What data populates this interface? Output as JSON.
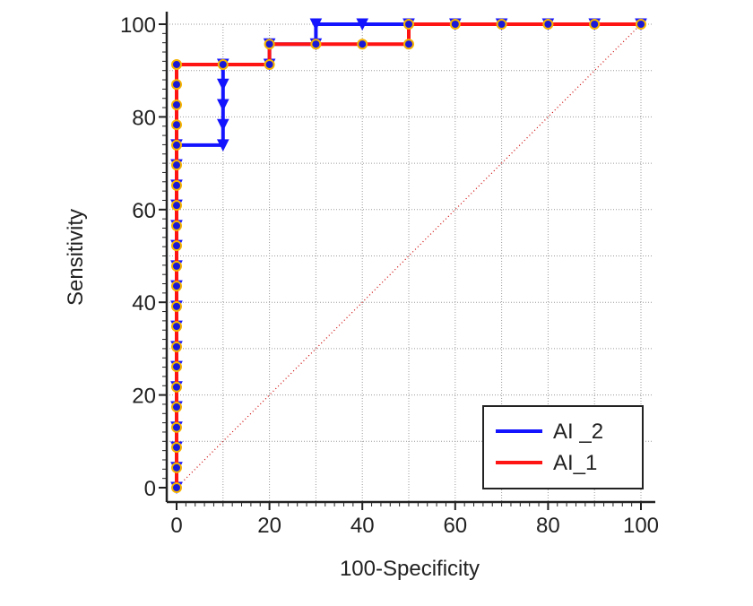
{
  "chart_data": {
    "type": "line",
    "title": "",
    "xlabel": "100-Specificity",
    "ylabel": "Sensitivity",
    "xlim": [
      0,
      100
    ],
    "ylim": [
      0,
      100
    ],
    "xticks": [
      0,
      20,
      40,
      60,
      80,
      100
    ],
    "yticks": [
      0,
      20,
      40,
      60,
      80,
      100
    ],
    "x_tick_labels": [
      "0",
      "20",
      "40",
      "60",
      "80",
      "100"
    ],
    "y_tick_labels": [
      "0",
      "20",
      "40",
      "60",
      "80",
      "100"
    ],
    "grid": true,
    "legend_position": "bottom-right",
    "reference_line": {
      "style": "dotted",
      "color": "#cc0000",
      "from": [
        0,
        0
      ],
      "to": [
        100,
        100
      ]
    },
    "series": [
      {
        "name": "AI _2",
        "color": "#1414ff",
        "marker": "triangle-down",
        "points": [
          [
            0,
            0
          ],
          [
            0,
            4.3
          ],
          [
            0,
            8.7
          ],
          [
            0,
            13
          ],
          [
            0,
            17.4
          ],
          [
            0,
            21.7
          ],
          [
            0,
            26.1
          ],
          [
            0,
            30.4
          ],
          [
            0,
            34.8
          ],
          [
            0,
            39.1
          ],
          [
            0,
            43.5
          ],
          [
            0,
            47.8
          ],
          [
            0,
            52.2
          ],
          [
            0,
            56.5
          ],
          [
            0,
            60.9
          ],
          [
            0,
            65.2
          ],
          [
            0,
            69.6
          ],
          [
            0,
            73.9
          ],
          [
            10,
            73.9
          ],
          [
            10,
            78.3
          ],
          [
            10,
            82.6
          ],
          [
            10,
            87
          ],
          [
            10,
            91.3
          ],
          [
            20,
            91.3
          ],
          [
            20,
            95.7
          ],
          [
            30,
            95.7
          ],
          [
            30,
            100
          ],
          [
            40,
            100
          ],
          [
            50,
            100
          ],
          [
            60,
            100
          ],
          [
            70,
            100
          ],
          [
            80,
            100
          ],
          [
            90,
            100
          ],
          [
            100,
            100
          ]
        ]
      },
      {
        "name": "AI_1",
        "color": "#ff1414",
        "marker": "circle",
        "points": [
          [
            0,
            0
          ],
          [
            0,
            4.3
          ],
          [
            0,
            8.7
          ],
          [
            0,
            13
          ],
          [
            0,
            17.4
          ],
          [
            0,
            21.7
          ],
          [
            0,
            26.1
          ],
          [
            0,
            30.4
          ],
          [
            0,
            34.8
          ],
          [
            0,
            39.1
          ],
          [
            0,
            43.5
          ],
          [
            0,
            47.8
          ],
          [
            0,
            52.2
          ],
          [
            0,
            56.5
          ],
          [
            0,
            60.9
          ],
          [
            0,
            65.2
          ],
          [
            0,
            69.6
          ],
          [
            0,
            73.9
          ],
          [
            0,
            78.3
          ],
          [
            0,
            82.6
          ],
          [
            0,
            87
          ],
          [
            0,
            91.3
          ],
          [
            10,
            91.3
          ],
          [
            20,
            91.3
          ],
          [
            20,
            95.7
          ],
          [
            30,
            95.7
          ],
          [
            40,
            95.7
          ],
          [
            50,
            95.7
          ],
          [
            50,
            100
          ],
          [
            60,
            100
          ],
          [
            70,
            100
          ],
          [
            80,
            100
          ],
          [
            90,
            100
          ],
          [
            100,
            100
          ]
        ]
      }
    ]
  }
}
